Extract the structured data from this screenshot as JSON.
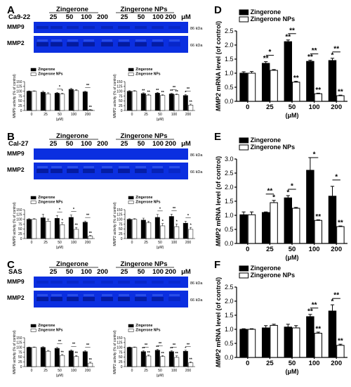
{
  "colors": {
    "gel": "#0b2fe0",
    "gel_light": "#2f5cf2",
    "band_dark": "#041a9a",
    "band_light": "#5f86f7",
    "black": "#000000",
    "white": "#ffffff"
  },
  "labels": {
    "units": "μM",
    "kda_86": "86 kDa",
    "kda_66": "66 kDa",
    "mmp9": "MMP9",
    "mmp2": "MMP2",
    "zingerone": "Zingerone",
    "zingerone_nps": "Zingerone NPs",
    "um_paren": "(μM)",
    "small_ylabel": "MMP9 activity (% of control)",
    "small_ylabel2": "MMP2 activity (% of control)",
    "big_ylabel_italic": "MMP2",
    "big_ylabel_rest": " mRNA level (of control)"
  },
  "gel_panels": [
    {
      "letter": "A",
      "cell": "Ca9-22",
      "doses": [
        "25",
        "50",
        "100",
        "200",
        "25",
        "50",
        "100",
        "200"
      ]
    },
    {
      "letter": "B",
      "cell": "Cal-27",
      "doses": [
        "25",
        "50",
        "100",
        "200",
        "25",
        "50",
        "100",
        "200"
      ]
    },
    {
      "letter": "C",
      "cell": "SAS",
      "doses": [
        "25",
        "50",
        "100",
        "200",
        "25",
        "50",
        "100",
        "200"
      ]
    }
  ],
  "chart_data": [
    {
      "panel": "A-left",
      "type": "bar",
      "categories": [
        "0",
        "25",
        "50",
        "100",
        "200"
      ],
      "ylim": [
        0,
        150
      ],
      "yticks": [
        "0",
        "25",
        "50",
        "75",
        "100",
        "125",
        "150"
      ],
      "series": [
        {
          "name": "Zingerone",
          "values": [
            100,
            95,
            90,
            110,
            97
          ]
        },
        {
          "name": "Zingerone NPs",
          "values": [
            100,
            86,
            85,
            103,
            3
          ]
        }
      ],
      "err": [
        [
          2,
          5,
          4,
          5,
          3
        ],
        [
          2,
          6,
          4,
          5,
          2
        ]
      ],
      "stars": [
        [
          "",
          "",
          "",
          "",
          ""
        ],
        [
          "",
          "",
          "*",
          "",
          "**"
        ]
      ],
      "brackets": [
        {
          "cat": 2,
          "label": "*"
        },
        {
          "cat": 4,
          "label": "**"
        }
      ]
    },
    {
      "panel": "A-right",
      "type": "bar",
      "categories": [
        "0",
        "25",
        "50",
        "100",
        "200"
      ],
      "ylim": [
        0,
        150
      ],
      "yticks": [
        "0",
        "25",
        "50",
        "75",
        "100",
        "125",
        "150"
      ],
      "series": [
        {
          "name": "Zingerone",
          "values": [
            100,
            88,
            90,
            86,
            78
          ]
        },
        {
          "name": "Zingerone NPs",
          "values": [
            100,
            80,
            78,
            82,
            28
          ]
        }
      ],
      "err": [
        [
          3,
          4,
          4,
          3,
          5
        ],
        [
          3,
          4,
          4,
          4,
          5
        ]
      ],
      "stars": [
        [
          "",
          "**",
          "**",
          "**",
          "*"
        ],
        [
          "",
          "**",
          "**",
          "**",
          "**"
        ]
      ],
      "brackets": [
        {
          "cat": 3,
          "label": "**"
        },
        {
          "cat": 4,
          "label": "**"
        }
      ]
    },
    {
      "panel": "B-left",
      "type": "bar",
      "categories": [
        "0",
        "25",
        "50",
        "100",
        "200"
      ],
      "ylim": [
        0,
        150
      ],
      "yticks": [
        "0",
        "25",
        "50",
        "75",
        "100",
        "125",
        "150"
      ],
      "series": [
        {
          "name": "Zingerone",
          "values": [
            100,
            108,
            105,
            110,
            85
          ]
        },
        {
          "name": "Zingerone NPs",
          "values": [
            100,
            90,
            72,
            48,
            12
          ]
        }
      ],
      "err": [
        [
          3,
          18,
          15,
          12,
          6
        ],
        [
          3,
          12,
          10,
          10,
          4
        ]
      ],
      "stars": [
        [
          "",
          "",
          "",
          "",
          ""
        ],
        [
          "",
          "",
          "*",
          "**",
          "**"
        ]
      ],
      "brackets": [
        {
          "cat": 2,
          "label": "*"
        },
        {
          "cat": 3,
          "label": "*"
        },
        {
          "cat": 4,
          "label": "**"
        }
      ]
    },
    {
      "panel": "B-right",
      "type": "bar",
      "categories": [
        "0",
        "25",
        "50",
        "100",
        "200"
      ],
      "ylim": [
        0,
        150
      ],
      "yticks": [
        "0",
        "25",
        "50",
        "75",
        "100",
        "125",
        "150"
      ],
      "series": [
        {
          "name": "Zingerone",
          "values": [
            100,
            96,
            110,
            115,
            80
          ]
        },
        {
          "name": "Zingerone NPs",
          "values": [
            100,
            82,
            66,
            62,
            48
          ]
        }
      ],
      "err": [
        [
          3,
          10,
          15,
          12,
          10
        ],
        [
          3,
          8,
          12,
          14,
          10
        ]
      ],
      "stars": [
        [
          "",
          "",
          "",
          "",
          ""
        ],
        [
          "",
          "",
          "*",
          "*",
          "*"
        ]
      ],
      "brackets": [
        {
          "cat": 2,
          "label": "*"
        },
        {
          "cat": 3,
          "label": "**"
        },
        {
          "cat": 4,
          "label": "*"
        }
      ]
    },
    {
      "panel": "C-left",
      "type": "bar",
      "categories": [
        "0",
        "25",
        "50",
        "100",
        "200"
      ],
      "ylim": [
        0,
        150
      ],
      "yticks": [
        "0",
        "25",
        "50",
        "75",
        "100",
        "125",
        "150"
      ],
      "series": [
        {
          "name": "Zingerone",
          "values": [
            100,
            100,
            95,
            82,
            78
          ]
        },
        {
          "name": "Zingerone NPs",
          "values": [
            100,
            80,
            58,
            52,
            18
          ]
        }
      ],
      "err": [
        [
          2,
          3,
          5,
          5,
          5
        ],
        [
          2,
          4,
          5,
          6,
          5
        ]
      ],
      "stars": [
        [
          "",
          "",
          "",
          "",
          ""
        ],
        [
          "",
          "",
          "**",
          "**",
          "**"
        ]
      ],
      "brackets": [
        {
          "cat": 2,
          "label": "**"
        },
        {
          "cat": 3,
          "label": "**"
        },
        {
          "cat": 4,
          "label": "**"
        }
      ]
    },
    {
      "panel": "C-right",
      "type": "bar",
      "categories": [
        "0",
        "25",
        "50",
        "100",
        "200"
      ],
      "ylim": [
        0,
        150
      ],
      "yticks": [
        "0",
        "25",
        "50",
        "75",
        "100",
        "125",
        "150"
      ],
      "series": [
        {
          "name": "Zingerone",
          "values": [
            100,
            78,
            85,
            78,
            80
          ]
        },
        {
          "name": "Zingerone NPs",
          "values": [
            100,
            55,
            52,
            48,
            20
          ]
        }
      ],
      "err": [
        [
          2,
          5,
          5,
          5,
          5
        ],
        [
          2,
          5,
          5,
          8,
          5
        ]
      ],
      "stars": [
        [
          "",
          "**",
          "**",
          "**",
          "*"
        ],
        [
          "",
          "**",
          "**",
          "**",
          "**"
        ]
      ],
      "brackets": [
        {
          "cat": 1,
          "label": "**"
        },
        {
          "cat": 2,
          "label": "**"
        },
        {
          "cat": 3,
          "label": "**"
        },
        {
          "cat": 4,
          "label": "**"
        }
      ]
    },
    {
      "panel": "D",
      "type": "bar",
      "categories": [
        "0",
        "25",
        "50",
        "100",
        "200"
      ],
      "ylim": [
        0,
        2.5
      ],
      "yticks": [
        "0.0",
        "0.5",
        "1.0",
        "1.5",
        "2.0",
        "2.5"
      ],
      "series": [
        {
          "name": "Zingerone",
          "values": [
            1.0,
            1.35,
            2.12,
            1.42,
            1.45
          ]
        },
        {
          "name": "Zingerone NPs",
          "values": [
            1.0,
            1.1,
            0.68,
            0.27,
            0.2
          ]
        }
      ],
      "err": [
        [
          0.05,
          0.06,
          0.06,
          0.04,
          0.08
        ],
        [
          0.06,
          0.03,
          0.03,
          0.02,
          0.02
        ]
      ],
      "stars": [
        [
          "",
          "**",
          "**",
          "**",
          "*"
        ],
        [
          "",
          "",
          "**",
          "**",
          "**"
        ]
      ],
      "brackets": [
        {
          "cat": 1,
          "label": "*"
        },
        {
          "cat": 2,
          "label": "**"
        },
        {
          "cat": 3,
          "label": "**"
        },
        {
          "cat": 4,
          "label": "**"
        }
      ]
    },
    {
      "panel": "E",
      "type": "bar",
      "categories": [
        "0",
        "25",
        "50",
        "100",
        "200"
      ],
      "ylim": [
        0,
        3
      ],
      "yticks": [
        "0.0",
        "0.5",
        "1.0",
        "1.5",
        "2.0",
        "2.5",
        "3.0"
      ],
      "series": [
        {
          "name": "Zingerone",
          "values": [
            1.02,
            1.1,
            1.62,
            2.6,
            1.68
          ]
        },
        {
          "name": "Zingerone NPs",
          "values": [
            1.02,
            1.45,
            1.25,
            0.82,
            0.6
          ]
        }
      ],
      "err": [
        [
          0.1,
          0.02,
          0.08,
          0.45,
          0.35
        ],
        [
          0.1,
          0.08,
          0.03,
          0.02,
          0.02
        ]
      ],
      "stars": [
        [
          "",
          "",
          "*",
          "",
          ""
        ],
        [
          "",
          "*",
          "",
          "**",
          "**"
        ]
      ],
      "brackets": [
        {
          "cat": 1,
          "label": "**"
        },
        {
          "cat": 2,
          "label": "*"
        },
        {
          "cat": 3,
          "label": "*"
        },
        {
          "cat": 4,
          "label": "*"
        }
      ]
    },
    {
      "panel": "F",
      "type": "bar",
      "categories": [
        "0",
        "25",
        "50",
        "100",
        "200"
      ],
      "ylim": [
        0,
        2.5
      ],
      "yticks": [
        "0.0",
        "0.5",
        "1.0",
        "1.5",
        "2.0",
        "2.5"
      ],
      "series": [
        {
          "name": "Zingerone",
          "values": [
            1.0,
            1.05,
            1.08,
            1.45,
            1.65
          ]
        },
        {
          "name": "Zingerone NPs",
          "values": [
            1.0,
            1.14,
            1.05,
            0.86,
            0.43
          ]
        }
      ],
      "err": [
        [
          0.02,
          0.08,
          0.1,
          0.08,
          0.22
        ],
        [
          0.02,
          0.04,
          0.08,
          0.04,
          0.04
        ]
      ],
      "stars": [
        [
          "",
          "",
          "",
          "**",
          "*"
        ],
        [
          "",
          "",
          "",
          "**",
          "**"
        ]
      ],
      "brackets": [
        {
          "cat": 3,
          "label": "**"
        },
        {
          "cat": 4,
          "label": "**"
        }
      ]
    }
  ]
}
